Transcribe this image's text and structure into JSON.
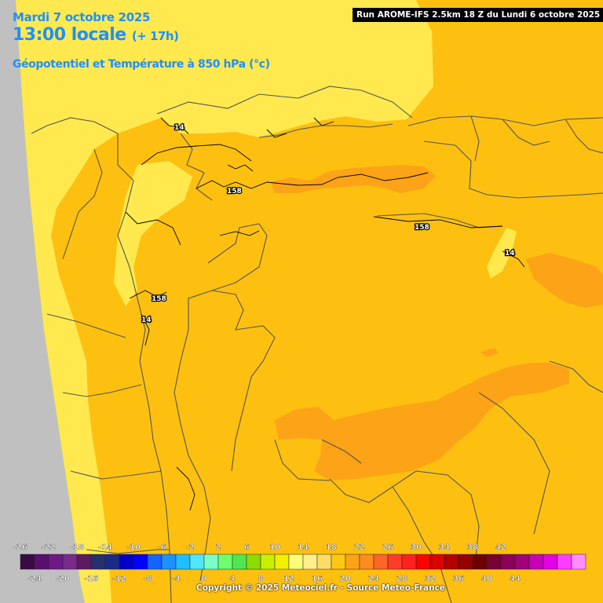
{
  "header": {
    "date": "Mardi 7 octobre 2025",
    "time": "13:00 locale",
    "lead": "(+ 17h)",
    "parameter": "Géopotentiel et Température à 850 hPa (°c)",
    "run": "Run AROME-IFS 2.5km 18 Z du Lundi 6 octobre 2025"
  },
  "contour_labels": [
    "14",
    "158",
    "158",
    "14",
    "158",
    "14"
  ],
  "colors": {
    "sea": "#c0c0c0",
    "temp_12_14": "#ffe94f",
    "temp_14_16": "#fdc010",
    "temp_16_18": "#fca317",
    "border": "#555555",
    "text_accent": "#1e90ff"
  },
  "scale": {
    "top_labels": [
      "-26",
      "-22",
      "-18",
      "-14",
      "-10",
      "-6",
      "-2",
      "2",
      "6",
      "10",
      "14",
      "18",
      "22",
      "26",
      "30",
      "34",
      "38",
      "42"
    ],
    "bottom_labels": [
      "-24",
      "-20",
      "-16",
      "-12",
      "-8",
      "-4",
      "0",
      "4",
      "8",
      "12",
      "16",
      "20",
      "24",
      "28",
      "32",
      "36",
      "40",
      "44"
    ],
    "colors": [
      "#3b0a45",
      "#5a0f6e",
      "#6e1a86",
      "#7a2a8a",
      "#5c1a60",
      "#26306e",
      "#1a2a8a",
      "#0000c8",
      "#0000ff",
      "#1464ff",
      "#1e90ff",
      "#1ebeff",
      "#50e6ff",
      "#78ffc8",
      "#6eff6e",
      "#50e650",
      "#8cdc00",
      "#c8f000",
      "#f0f000",
      "#ffff78",
      "#fff08c",
      "#ffdc64",
      "#fcc814",
      "#fca317",
      "#ff8c1e",
      "#ff6428",
      "#ff3c28",
      "#ff2020",
      "#ff0000",
      "#dc0000",
      "#b40000",
      "#960000",
      "#6e0000",
      "#780032",
      "#8c005a",
      "#a0007a",
      "#c800b4",
      "#e600e6",
      "#ff3cff",
      "#ff8cff"
    ]
  },
  "footer": {
    "copyright": "Copyright © 2025 Meteociel.fr - Source Meteo-France"
  }
}
